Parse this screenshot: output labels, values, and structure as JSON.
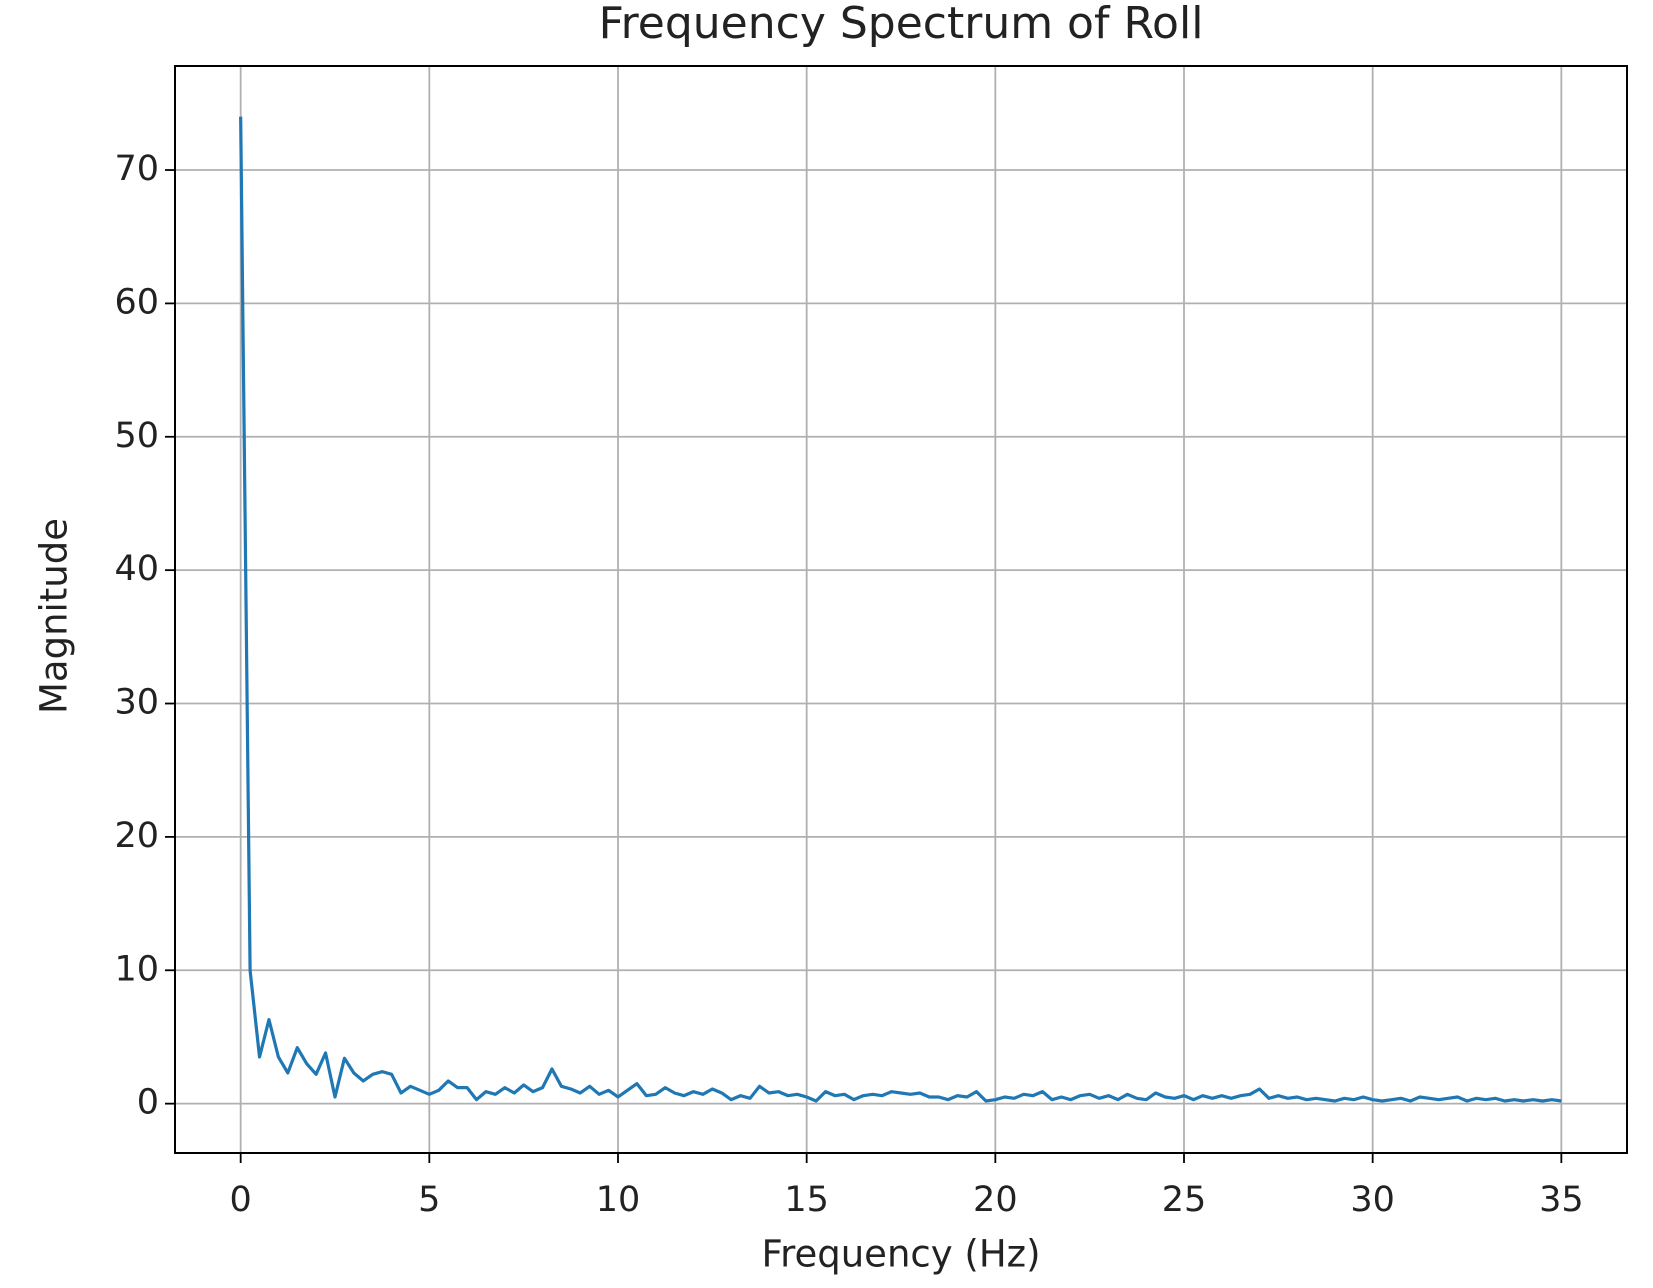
{
  "chart_data": {
    "type": "line",
    "title": "Frequency Spectrum of Roll",
    "x_label": "Frequency (Hz)",
    "y_label": "Magnitude",
    "x": [
      0,
      0.25,
      0.5,
      0.75,
      1,
      1.25,
      1.5,
      1.75,
      2,
      2.25,
      2.5,
      2.75,
      3,
      3.25,
      3.5,
      3.75,
      4,
      4.25,
      4.5,
      4.75,
      5,
      5.25,
      5.5,
      5.75,
      6,
      6.25,
      6.5,
      6.75,
      7,
      7.25,
      7.5,
      7.75,
      8,
      8.25,
      8.5,
      8.75,
      9,
      9.25,
      9.5,
      9.75,
      10,
      10.25,
      10.5,
      10.75,
      11,
      11.25,
      11.5,
      11.75,
      12,
      12.25,
      12.5,
      12.75,
      13,
      13.25,
      13.5,
      13.75,
      14,
      14.25,
      14.5,
      14.75,
      15,
      15.25,
      15.5,
      15.75,
      16,
      16.25,
      16.5,
      16.75,
      17,
      17.25,
      17.5,
      17.75,
      18,
      18.25,
      18.5,
      18.75,
      19,
      19.25,
      19.5,
      19.75,
      20,
      20.25,
      20.5,
      20.75,
      21,
      21.25,
      21.5,
      21.75,
      22,
      22.25,
      22.5,
      22.75,
      23,
      23.25,
      23.5,
      23.75,
      24,
      24.25,
      24.5,
      24.75,
      25,
      25.25,
      25.5,
      25.75,
      26,
      26.25,
      26.5,
      26.75,
      27,
      27.25,
      27.5,
      27.75,
      28,
      28.25,
      28.5,
      28.75,
      29,
      29.25,
      29.5,
      29.75,
      30,
      30.25,
      30.5,
      30.75,
      31,
      31.25,
      31.5,
      31.75,
      32,
      32.25,
      32.5,
      32.75,
      33,
      33.25,
      33.5,
      33.75,
      34,
      34.25,
      34.5,
      34.75,
      35
    ],
    "series": [
      {
        "name": "Roll",
        "color": "#1f77b4",
        "values": [
          74,
          10,
          3.5,
          6.3,
          3.5,
          2.3,
          4.2,
          3,
          2.2,
          3.8,
          0.5,
          3.4,
          2.3,
          1.7,
          2.2,
          2.4,
          2.2,
          0.8,
          1.3,
          1.0,
          0.7,
          1.0,
          1.7,
          1.2,
          1.2,
          0.3,
          0.9,
          0.7,
          1.2,
          0.8,
          1.4,
          0.9,
          1.2,
          2.6,
          1.3,
          1.1,
          0.8,
          1.3,
          0.7,
          1.0,
          0.5,
          1.0,
          1.5,
          0.6,
          0.7,
          1.2,
          0.8,
          0.6,
          0.9,
          0.7,
          1.1,
          0.8,
          0.3,
          0.6,
          0.4,
          1.3,
          0.8,
          0.9,
          0.6,
          0.7,
          0.5,
          0.2,
          0.9,
          0.6,
          0.7,
          0.3,
          0.6,
          0.7,
          0.6,
          0.9,
          0.8,
          0.7,
          0.8,
          0.5,
          0.5,
          0.3,
          0.6,
          0.5,
          0.9,
          0.2,
          0.3,
          0.5,
          0.4,
          0.7,
          0.6,
          0.9,
          0.3,
          0.5,
          0.3,
          0.6,
          0.7,
          0.4,
          0.6,
          0.3,
          0.7,
          0.4,
          0.3,
          0.8,
          0.5,
          0.4,
          0.6,
          0.3,
          0.6,
          0.4,
          0.6,
          0.4,
          0.6,
          0.7,
          1.1,
          0.4,
          0.6,
          0.4,
          0.5,
          0.3,
          0.4,
          0.3,
          0.2,
          0.4,
          0.3,
          0.5,
          0.3,
          0.2,
          0.3,
          0.4,
          0.2,
          0.5,
          0.4,
          0.3,
          0.4,
          0.5,
          0.2,
          0.4,
          0.3,
          0.4,
          0.2,
          0.3,
          0.2,
          0.3,
          0.2,
          0.3,
          0.2
        ]
      }
    ],
    "xlim": [
      -1.74,
      36.74
    ],
    "ylim": [
      -3.7,
      77.8
    ],
    "xticks": [
      0,
      5,
      10,
      15,
      20,
      25,
      30,
      35
    ],
    "yticks": [
      0,
      10,
      20,
      30,
      40,
      50,
      60,
      70
    ],
    "grid": true
  }
}
